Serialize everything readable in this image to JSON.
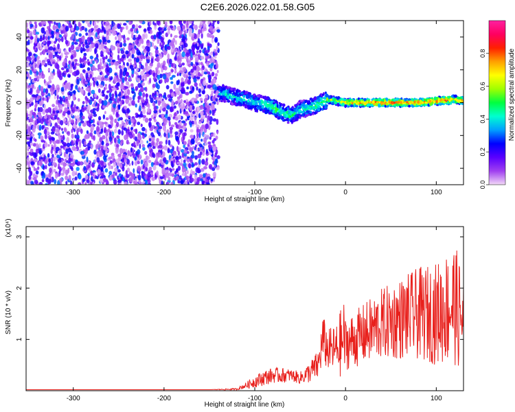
{
  "title": "C2E6.2026.022.01.58.G05",
  "colors": {
    "snr_line": "#e8201c",
    "axis": "#000000",
    "background": "#ffffff"
  },
  "chart_data": [
    {
      "type": "heatmap",
      "xlabel": "Height of straight line (km)",
      "ylabel": "Frequency (Hz)",
      "xlim": [
        -352,
        130
      ],
      "ylim": [
        -50,
        50
      ],
      "x_ticks": [
        -300,
        -200,
        -100,
        0,
        100
      ],
      "y_ticks": [
        -40,
        -20,
        0,
        20,
        40
      ],
      "colorbar": {
        "label": "Normalized spectral amplitude",
        "range": [
          0,
          1
        ],
        "ticks": [
          "0.0",
          "0.2",
          "0.4",
          "0.6",
          "0.8"
        ],
        "tick_values": [
          0.0,
          0.2,
          0.4,
          0.6,
          0.8
        ],
        "colormap": [
          "#f2d9f7",
          "#a040f0",
          "#5a00ff",
          "#0000ff",
          "#00a0ff",
          "#00ffd0",
          "#00ff40",
          "#a0ff00",
          "#ffff00",
          "#ffa000",
          "#ff2000",
          "#ff0060",
          "#ff20a0"
        ]
      },
      "noise_region_x": [
        -352,
        -140
      ],
      "signal_track": [
        {
          "x": -140,
          "f": 6,
          "a": 0.35
        },
        {
          "x": -130,
          "f": 5,
          "a": 0.4
        },
        {
          "x": -120,
          "f": 3,
          "a": 0.4
        },
        {
          "x": -110,
          "f": 2,
          "a": 0.4
        },
        {
          "x": -100,
          "f": 0,
          "a": 0.4
        },
        {
          "x": -90,
          "f": -1,
          "a": 0.45
        },
        {
          "x": -80,
          "f": -3,
          "a": 0.5
        },
        {
          "x": -70,
          "f": -6,
          "a": 0.5
        },
        {
          "x": -60,
          "f": -8,
          "a": 0.45
        },
        {
          "x": -50,
          "f": -4,
          "a": 0.4
        },
        {
          "x": -40,
          "f": -3,
          "a": 0.45
        },
        {
          "x": -30,
          "f": -1,
          "a": 0.5
        },
        {
          "x": -20,
          "f": 2,
          "a": 0.55
        },
        {
          "x": -10,
          "f": 1,
          "a": 0.6
        },
        {
          "x": 0,
          "f": 0,
          "a": 0.7
        },
        {
          "x": 20,
          "f": 0,
          "a": 0.8
        },
        {
          "x": 40,
          "f": 0,
          "a": 0.85
        },
        {
          "x": 60,
          "f": 0,
          "a": 0.85
        },
        {
          "x": 80,
          "f": 0,
          "a": 0.8
        },
        {
          "x": 100,
          "f": 1,
          "a": 0.85
        },
        {
          "x": 120,
          "f": 2,
          "a": 0.8
        },
        {
          "x": 130,
          "f": 1,
          "a": 0.75
        }
      ]
    },
    {
      "type": "line",
      "xlabel": "Height of straight line (km)",
      "ylabel": "SNR (10 * v/v)",
      "y_multiplier": "(x10⁴)",
      "xlim": [
        -352,
        130
      ],
      "ylim": [
        0,
        3.2
      ],
      "x_ticks": [
        -300,
        -200,
        -100,
        0,
        100
      ],
      "y_ticks": [
        1,
        2,
        3
      ],
      "series": [
        {
          "x": [
            -352,
            -300,
            -250,
            -200,
            -150,
            -120,
            -110,
            -100,
            -90,
            -80,
            -70,
            -60,
            -50,
            -40,
            -30,
            -25,
            -20,
            -10,
            -2,
            0,
            20,
            40,
            60,
            80,
            100,
            110,
            120,
            125,
            130
          ],
          "values": [
            0.02,
            0.02,
            0.02,
            0.02,
            0.02,
            0.03,
            0.1,
            0.18,
            0.25,
            0.3,
            0.3,
            0.3,
            0.25,
            0.35,
            0.5,
            1.0,
            0.8,
            0.8,
            1.0,
            0.9,
            1.1,
            1.3,
            1.4,
            1.5,
            1.5,
            1.6,
            1.7,
            1.5,
            1.4
          ],
          "spread": [
            0.0,
            0.0,
            0.0,
            0.0,
            0.0,
            0.02,
            0.06,
            0.12,
            0.15,
            0.15,
            0.15,
            0.12,
            0.12,
            0.2,
            0.3,
            0.5,
            0.4,
            0.5,
            0.8,
            0.5,
            0.6,
            0.7,
            0.8,
            0.9,
            1.0,
            1.1,
            1.2,
            1.1,
            0.9
          ]
        }
      ]
    }
  ]
}
